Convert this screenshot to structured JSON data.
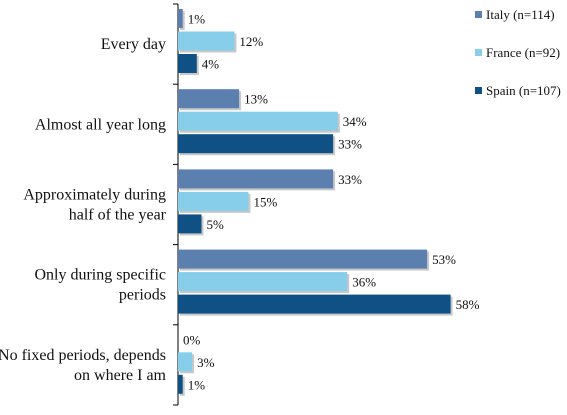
{
  "chart_data": {
    "type": "bar",
    "orientation": "horizontal",
    "categories": [
      "Every day",
      "Almost all year long",
      "Approximately during half of the year",
      "Only during specific periods",
      "No fixed periods, depends on where I am"
    ],
    "category_lines": [
      [
        "Every day"
      ],
      [
        "Almost all year long"
      ],
      [
        "Approximately during",
        "half of the year"
      ],
      [
        "Only during specific",
        "periods"
      ],
      [
        "No fixed periods, depends",
        "on where I am"
      ]
    ],
    "series": [
      {
        "name": "Italy (n=114)",
        "color": "#5B7FAE",
        "values": [
          1,
          13,
          33,
          53,
          0
        ]
      },
      {
        "name": "France (n=92)",
        "color": "#87CEEB",
        "values": [
          12,
          34,
          15,
          36,
          3
        ]
      },
      {
        "name": "Spain (n=107)",
        "color": "#0F5185",
        "values": [
          4,
          33,
          5,
          58,
          1
        ]
      }
    ],
    "value_suffix": "%",
    "xlim": [
      0,
      60
    ],
    "grid": false,
    "legend_position": "top-right"
  }
}
